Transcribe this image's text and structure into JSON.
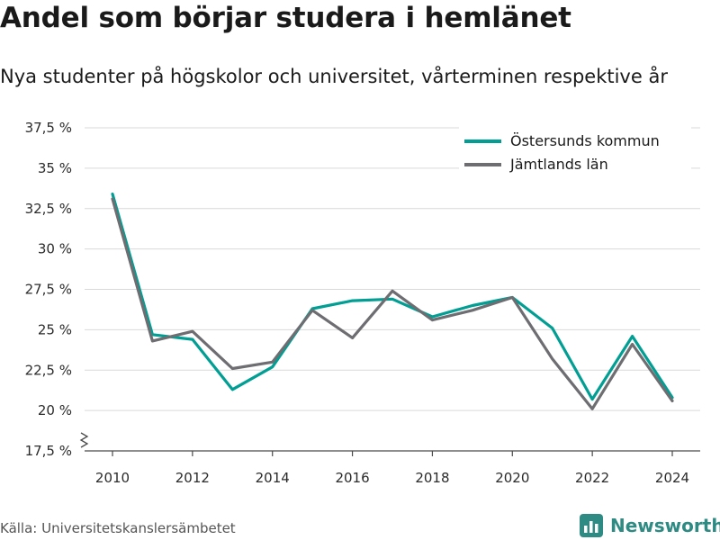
{
  "header": {
    "title": "Andel som börjar studera i hemlänet",
    "subtitle": "Nya studenter på högskolor och universitet, vårterminen respektive år"
  },
  "footer": {
    "source": "Källa: Universitetskanslersämbetet",
    "brand": "Newsworthy"
  },
  "chart_data": {
    "type": "line",
    "title": "Andel som börjar studera i hemlänet",
    "subtitle": "Nya studenter på högskolor och universitet, vårterminen respektive år",
    "xlabel": "",
    "ylabel": "",
    "x": [
      2010,
      2011,
      2012,
      2013,
      2014,
      2015,
      2016,
      2017,
      2018,
      2019,
      2020,
      2021,
      2022,
      2023,
      2024
    ],
    "xlim": [
      2009.5,
      2024.5
    ],
    "x_ticks": [
      2010,
      2012,
      2014,
      2016,
      2018,
      2020,
      2022,
      2024
    ],
    "ylim": [
      17.5,
      37.5
    ],
    "y_ticks": [
      17.5,
      20,
      22.5,
      25,
      27.5,
      30,
      32.5,
      35,
      37.5
    ],
    "y_tick_labels": [
      "17,5 %",
      "20 %",
      "22,5 %",
      "25 %",
      "27,5 %",
      "30 %",
      "32,5 %",
      "35 %",
      "37,5 %"
    ],
    "y_axis_break": true,
    "grid": true,
    "legend_position": "top-right",
    "series": [
      {
        "name": "Östersunds kommun",
        "color": "#009e93",
        "values": [
          33.4,
          24.7,
          24.4,
          21.3,
          22.7,
          26.3,
          26.8,
          26.9,
          25.8,
          26.5,
          27.0,
          25.1,
          20.7,
          24.6,
          20.8
        ]
      },
      {
        "name": "Jämtlands län",
        "color": "#6e6e72",
        "values": [
          33.1,
          24.3,
          24.9,
          22.6,
          23.0,
          26.2,
          24.5,
          27.4,
          25.6,
          26.2,
          27.0,
          23.2,
          20.1,
          24.1,
          20.6
        ]
      }
    ]
  }
}
